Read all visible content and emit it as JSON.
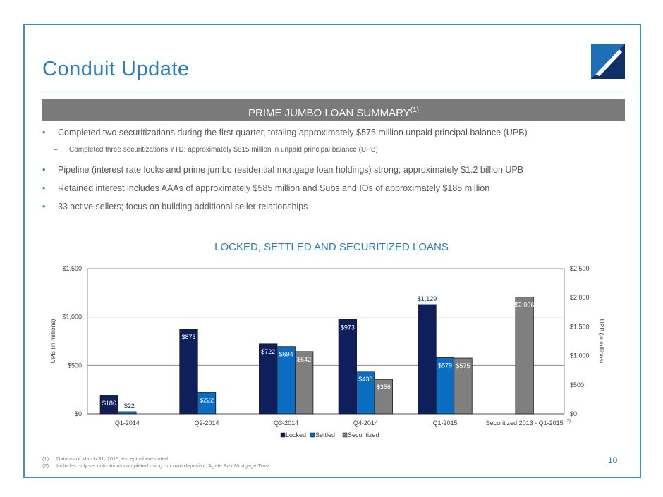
{
  "page": {
    "title": "Conduit Update",
    "page_number": "10"
  },
  "banner": {
    "text": "PRIME JUMBO LOAN SUMMARY",
    "sup": "(1)"
  },
  "bullets": [
    "Completed two securitizations during the first quarter, totaling approximately $575 million unpaid principal balance (UPB)",
    "Completed three securitizations YTD; approximately $815 million in unpaid principal balance (UPB)",
    "Pipeline (interest rate locks and prime jumbo residential mortgage loan holdings) strong; approximately $1.2 billion UPB",
    "Retained interest includes AAAs of approximately $585 million and Subs and IOs of approximately $185 million",
    "33 active sellers; focus on building additional seller relationships"
  ],
  "footnotes": [
    {
      "num": "(1)",
      "text": "Data as of March 31, 2015, except where noted."
    },
    {
      "num": "(2)",
      "text": "Includes only securitizations completed using our own depositor, Agate Bay Mortgage Trust."
    }
  ],
  "colors": {
    "brand": "#2a7bbf",
    "locked": "#0f1f5c",
    "settled": "#0a6dc2",
    "securitized": "#7f7f7f"
  },
  "chart_data": {
    "type": "bar",
    "title": "LOCKED, SETTLED AND SECURITIZED LOANS",
    "categories": [
      "Q1-2014",
      "Q2-2014",
      "Q3-2014",
      "Q4-2014",
      "Q1-2015",
      "Securitized 2013 - Q1-2015"
    ],
    "category_sup": "(2)",
    "series": [
      {
        "name": "Locked",
        "axis": "left",
        "values": [
          186,
          873,
          722,
          973,
          1129,
          null
        ],
        "labels": [
          "$186",
          "$873",
          "$722",
          "$973",
          "$1,129",
          ""
        ]
      },
      {
        "name": "Settled",
        "axis": "left",
        "values": [
          22,
          222,
          694,
          438,
          579,
          null
        ],
        "labels": [
          "$22",
          "$222",
          "$694",
          "$438",
          "$579",
          ""
        ]
      },
      {
        "name": "Securitized",
        "axis": "left",
        "values": [
          null,
          null,
          642,
          356,
          575,
          null
        ],
        "labels": [
          "",
          "",
          "$642",
          "$356",
          "$575",
          ""
        ]
      },
      {
        "name": "Securitized",
        "axis": "right",
        "values": [
          null,
          null,
          null,
          null,
          null,
          2006
        ],
        "labels": [
          "",
          "",
          "",
          "",
          "",
          "$2,006"
        ]
      }
    ],
    "ylabel_left": "UPB (in millions)",
    "ylabel_right": "UPB (in millions)",
    "ylim_left": [
      0,
      1500
    ],
    "ylim_right": [
      0,
      2500
    ],
    "yticks_left": [
      "$0",
      "$500",
      "$1,000",
      "$1,500"
    ],
    "yticks_right": [
      "$0",
      "$500",
      "$1,000",
      "$1,500",
      "$2,000",
      "$2,500"
    ],
    "grid": true,
    "legend": "bottom",
    "legend_items": [
      "Locked",
      "Settled",
      "Securitized"
    ]
  }
}
